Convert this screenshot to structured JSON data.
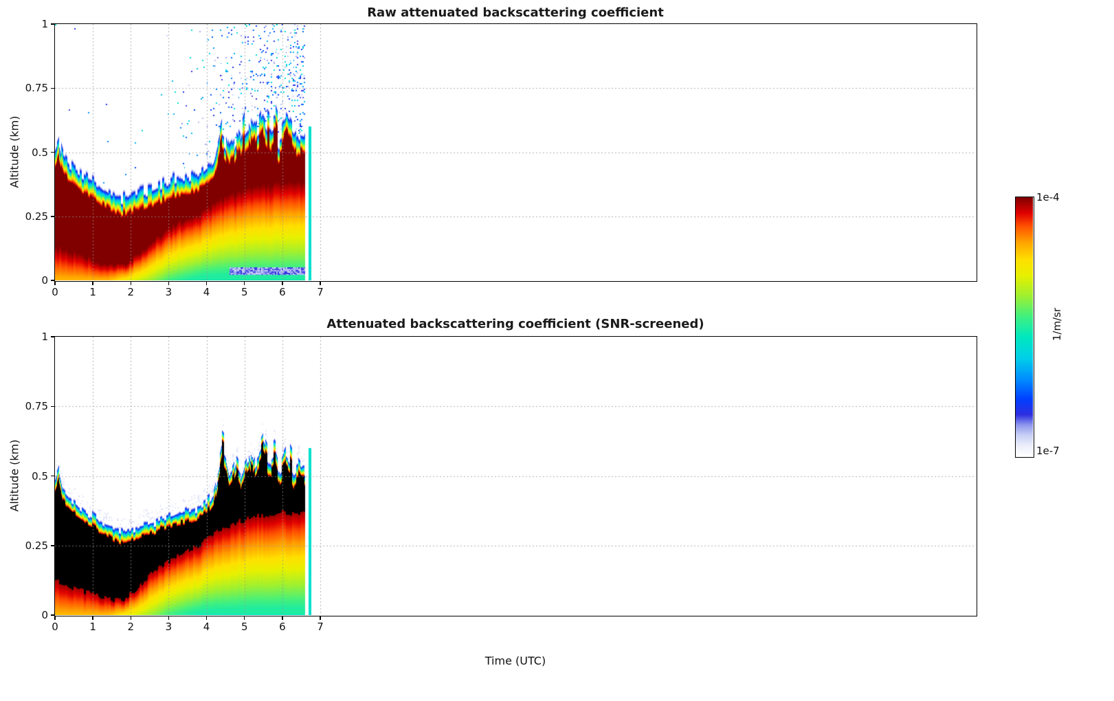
{
  "figure": {
    "xlabel": "Time (UTC)",
    "ylabel": "Altitude (km)",
    "background": "#ffffff"
  },
  "colorbar": {
    "label": "1/m/sr",
    "top_label": "1e-4",
    "bottom_label": "1e-7",
    "scale": "log10",
    "stops": [
      [
        0.0,
        "#ffffff"
      ],
      [
        0.04,
        "#eceefb"
      ],
      [
        0.08,
        "#c9d0f5"
      ],
      [
        0.12,
        "#8e97ee"
      ],
      [
        0.16,
        "#2e2ee0"
      ],
      [
        0.22,
        "#0040ff"
      ],
      [
        0.3,
        "#0090ff"
      ],
      [
        0.38,
        "#00d0e8"
      ],
      [
        0.46,
        "#00e8c0"
      ],
      [
        0.54,
        "#40f080"
      ],
      [
        0.62,
        "#a0f030"
      ],
      [
        0.7,
        "#e8f000"
      ],
      [
        0.76,
        "#ffe000"
      ],
      [
        0.83,
        "#ffa000"
      ],
      [
        0.89,
        "#ff5000"
      ],
      [
        0.94,
        "#e00000"
      ],
      [
        1.0,
        "#800000"
      ]
    ]
  },
  "layer_series": {
    "description": "Aerosol/cloud layer boundaries (km) and surface-level log10 backscatter vs time (UTC h), read from the plots",
    "times_utc": [
      0.0,
      0.1,
      0.2,
      0.3,
      0.4,
      0.5,
      0.6,
      0.7,
      0.8,
      0.9,
      1.0,
      1.1,
      1.2,
      1.3,
      1.4,
      1.5,
      1.6,
      1.7,
      1.8,
      1.9,
      2.0,
      2.1,
      2.2,
      2.3,
      2.4,
      2.5,
      2.6,
      2.7,
      2.8,
      2.9,
      3.0,
      3.1,
      3.2,
      3.3,
      3.4,
      3.5,
      3.6,
      3.7,
      3.8,
      3.9,
      4.0,
      4.1,
      4.2,
      4.3,
      4.4,
      4.5,
      4.6,
      4.7,
      4.8,
      4.9,
      5.0,
      5.1,
      5.2,
      5.3,
      5.4,
      5.5,
      5.6,
      5.7,
      5.8,
      5.9,
      6.0,
      6.1,
      6.2,
      6.3,
      6.4,
      6.5
    ],
    "layer_top_km": [
      0.44,
      0.48,
      0.42,
      0.4,
      0.38,
      0.37,
      0.36,
      0.35,
      0.34,
      0.33,
      0.32,
      0.31,
      0.3,
      0.29,
      0.28,
      0.27,
      0.265,
      0.26,
      0.255,
      0.26,
      0.265,
      0.27,
      0.275,
      0.28,
      0.285,
      0.29,
      0.295,
      0.3,
      0.305,
      0.31,
      0.315,
      0.32,
      0.325,
      0.33,
      0.33,
      0.335,
      0.34,
      0.345,
      0.35,
      0.36,
      0.37,
      0.38,
      0.4,
      0.46,
      0.52,
      0.5,
      0.44,
      0.46,
      0.5,
      0.47,
      0.52,
      0.55,
      0.5,
      0.53,
      0.55,
      0.58,
      0.55,
      0.53,
      0.55,
      0.5,
      0.52,
      0.55,
      0.53,
      0.5,
      0.52,
      0.5
    ],
    "layer_bottom_km": [
      0.13,
      0.13,
      0.12,
      0.12,
      0.11,
      0.11,
      0.1,
      0.1,
      0.09,
      0.09,
      0.08,
      0.08,
      0.07,
      0.07,
      0.06,
      0.06,
      0.06,
      0.06,
      0.06,
      0.07,
      0.08,
      0.09,
      0.1,
      0.12,
      0.13,
      0.15,
      0.16,
      0.17,
      0.18,
      0.19,
      0.2,
      0.21,
      0.22,
      0.23,
      0.23,
      0.24,
      0.25,
      0.25,
      0.26,
      0.27,
      0.28,
      0.29,
      0.3,
      0.31,
      0.32,
      0.33,
      0.33,
      0.34,
      0.34,
      0.35,
      0.35,
      0.36,
      0.36,
      0.36,
      0.37,
      0.37,
      0.37,
      0.37,
      0.38,
      0.38,
      0.38,
      0.38,
      0.38,
      0.38,
      0.38,
      0.38
    ],
    "surface_log10": [
      -4.6,
      -4.6,
      -4.6,
      -4.6,
      -4.6,
      -4.6,
      -4.6,
      -4.6,
      -4.6,
      -4.6,
      -4.6,
      -4.6,
      -4.6,
      -4.6,
      -4.6,
      -4.65,
      -4.7,
      -4.75,
      -4.8,
      -4.85,
      -4.9,
      -4.95,
      -5.0,
      -5.05,
      -5.1,
      -5.15,
      -5.2,
      -5.25,
      -5.3,
      -5.35,
      -5.4,
      -5.42,
      -5.45,
      -5.47,
      -5.5,
      -5.52,
      -5.54,
      -5.56,
      -5.58,
      -5.6,
      -5.6,
      -5.6,
      -5.6,
      -5.6,
      -5.6,
      -5.6,
      -5.6,
      -5.6,
      -5.6,
      -5.6,
      -5.6,
      -5.6,
      -5.6,
      -5.6,
      -5.6,
      -5.6,
      -5.6,
      -5.6,
      -5.6,
      -5.6,
      -5.6,
      -5.6,
      -5.6,
      -5.6,
      -5.6,
      -5.6
    ]
  },
  "chart_data": [
    {
      "type": "heatmap",
      "title": "Raw attenuated backscattering coefficient",
      "ylabel": "Altitude (km)",
      "units": "1/m/sr",
      "x_range": [
        0,
        24.3
      ],
      "y_range": [
        0,
        1
      ],
      "x_ticks": [
        0,
        1,
        2,
        3,
        4,
        5,
        6,
        7
      ],
      "x_tick_labels": [
        "0",
        "1",
        "2",
        "3",
        "4",
        "5",
        "6",
        "7"
      ],
      "y_ticks": [
        0,
        0.25,
        0.5,
        0.75,
        1
      ],
      "y_tick_labels": [
        "0",
        "0.25",
        "0.5",
        "0.75",
        "1"
      ],
      "value_log10_range": [
        -7,
        -4
      ],
      "data_start_time": 0,
      "data_end_time": 6.6,
      "screened": false,
      "speckle_noise": true,
      "grid": "dotted",
      "seed": 7
    },
    {
      "type": "heatmap",
      "title": "Attenuated backscattering coefficient (SNR-screened)",
      "ylabel": "Altitude (km)",
      "xlabel": "Time (UTC)",
      "units": "1/m/sr",
      "x_range": [
        0,
        24.3
      ],
      "y_range": [
        0,
        1
      ],
      "x_ticks": [
        0,
        1,
        2,
        3,
        4,
        5,
        6,
        7
      ],
      "x_tick_labels": [
        "0",
        "1",
        "2",
        "3",
        "4",
        "5",
        "6",
        "7"
      ],
      "y_ticks": [
        0,
        0.25,
        0.5,
        0.75,
        1
      ],
      "y_tick_labels": [
        "0",
        "0.25",
        "0.5",
        "0.75",
        "1"
      ],
      "value_log10_range": [
        -7,
        -4
      ],
      "data_start_time": 0,
      "data_end_time": 6.6,
      "screened": true,
      "speckle_noise": false,
      "grid": "dotted",
      "seed": 13
    }
  ]
}
